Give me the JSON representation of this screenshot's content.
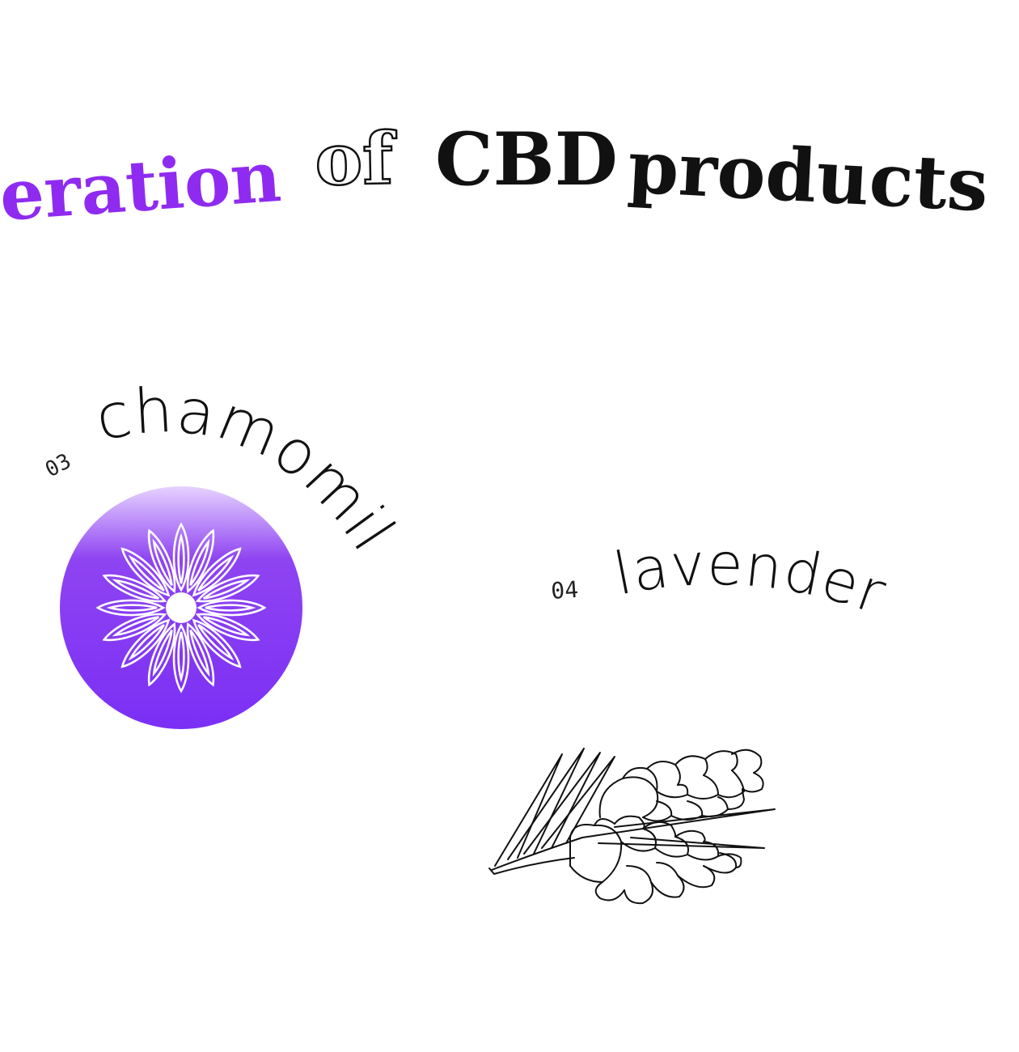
{
  "headline": {
    "word_1": "eration",
    "word_2": "of",
    "word_3": "CBD",
    "word_4": "products",
    "accent_color": "#8f2bf0",
    "text_color": "#111111"
  },
  "items": [
    {
      "number": "03",
      "name": "chamomile",
      "icon": "chamomile-flower-icon",
      "badge_color_top": "#e6d2ff",
      "badge_color_bottom": "#7b2ff5"
    },
    {
      "number": "04",
      "name": "lavender",
      "icon": "lavender-sprig-icon"
    }
  ]
}
